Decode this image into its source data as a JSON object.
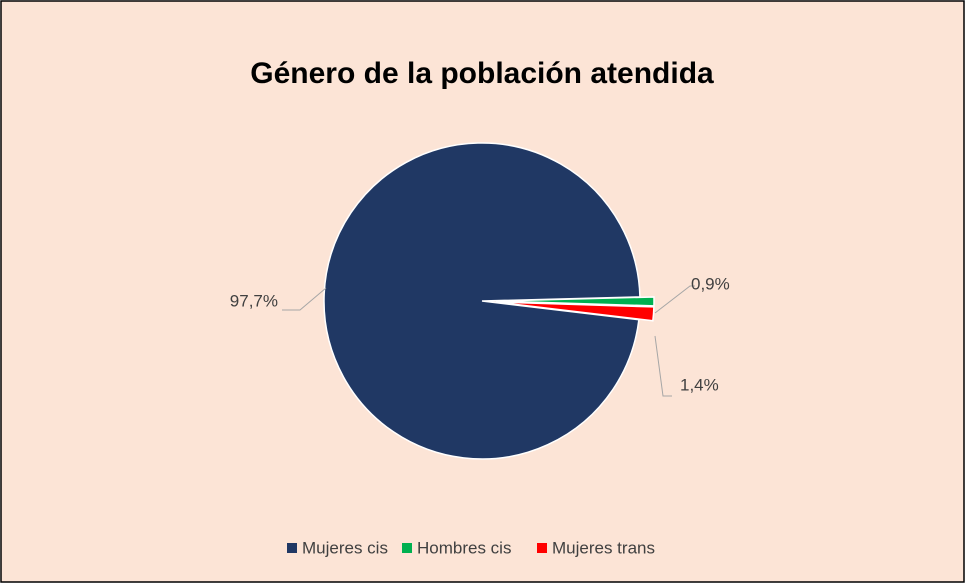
{
  "chart_data": {
    "type": "pie",
    "title": "Género de la población atendida",
    "categories": [
      "Mujeres cis",
      "Hombres cis",
      "Mujeres trans"
    ],
    "values": [
      97.7,
      0.9,
      1.4
    ],
    "value_labels": [
      "97,7%",
      "0,9%",
      "1,4%"
    ],
    "colors": [
      "#203864",
      "#00b050",
      "#ff0000"
    ],
    "legend": "bottom"
  }
}
